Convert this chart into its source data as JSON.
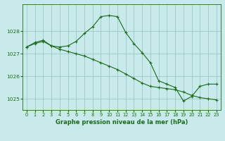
{
  "title": "Graphe pression niveau de la mer (hPa)",
  "background_color": "#c8eaea",
  "grid_color": "#a0c8c8",
  "line_color": "#1a6b1a",
  "xlim": [
    -0.5,
    23.5
  ],
  "ylim": [
    1024.5,
    1029.2
  ],
  "yticks": [
    1025,
    1026,
    1027,
    1028
  ],
  "xticks": [
    0,
    1,
    2,
    3,
    4,
    5,
    6,
    7,
    8,
    9,
    10,
    11,
    12,
    13,
    14,
    15,
    16,
    17,
    18,
    19,
    20,
    21,
    22,
    23
  ],
  "xtick_labels": [
    "0",
    "1",
    "2",
    "3",
    "4",
    "5",
    "6",
    "7",
    "8",
    "9",
    "10",
    "11",
    "12",
    "13",
    "14",
    "15",
    "16",
    "17",
    "18",
    "19",
    "20",
    "21",
    "22",
    "23"
  ],
  "series1_x": [
    0,
    1,
    2,
    3,
    4,
    5,
    6,
    7,
    8,
    9,
    10,
    11,
    12,
    13,
    14,
    15,
    16,
    17,
    18,
    19,
    20,
    21,
    22,
    23
  ],
  "series1_y": [
    1027.3,
    1027.5,
    1027.6,
    1027.35,
    1027.3,
    1027.35,
    1027.55,
    1027.9,
    1028.2,
    1028.65,
    1028.7,
    1028.65,
    1027.95,
    1027.45,
    1027.05,
    1026.6,
    1025.8,
    1025.65,
    1025.5,
    1024.9,
    1025.1,
    1025.55,
    1025.65,
    1025.65
  ],
  "series2_x": [
    0,
    1,
    2,
    3,
    4,
    5,
    6,
    7,
    8,
    9,
    10,
    11,
    12,
    13,
    14,
    15,
    16,
    17,
    18,
    19,
    20,
    21,
    22,
    23
  ],
  "series2_y": [
    1027.3,
    1027.45,
    1027.55,
    1027.35,
    1027.2,
    1027.1,
    1027.0,
    1026.9,
    1026.75,
    1026.6,
    1026.45,
    1026.3,
    1026.1,
    1025.9,
    1025.7,
    1025.55,
    1025.5,
    1025.45,
    1025.4,
    1025.3,
    1025.15,
    1025.05,
    1025.0,
    1024.95
  ],
  "title_fontsize": 6.0,
  "tick_fontsize": 4.8,
  "linewidth": 0.8,
  "markersize": 2.5,
  "markeredgewidth": 0.8
}
